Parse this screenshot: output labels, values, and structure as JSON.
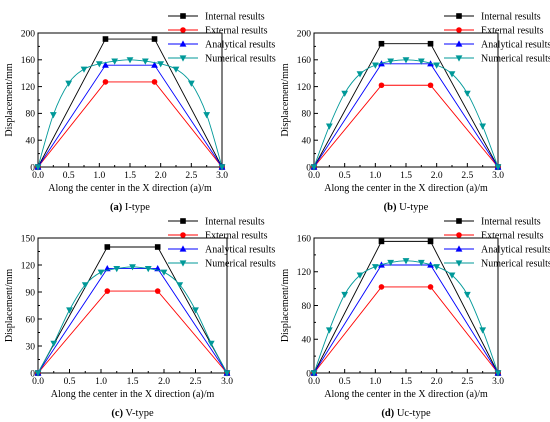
{
  "chart_data": [
    {
      "type": "line",
      "caption_letter": "(a)",
      "caption_text": " I-type",
      "xlabel": "Along the center in the X direction (a)/m",
      "ylabel": "Displacement/mm",
      "xlim": [
        0,
        3
      ],
      "ylim": [
        0,
        200
      ],
      "xticks": [
        "0.0",
        "0.5",
        "1.0",
        "1.5",
        "2.0",
        "2.5",
        "3.0"
      ],
      "yticks": [
        "0",
        "40",
        "80",
        "120",
        "160",
        "200"
      ],
      "legend_position": "top-right",
      "series": [
        {
          "name": "Internal results",
          "color": "#000000",
          "marker": "square",
          "show_markers": true,
          "points": [
            [
              0,
              0
            ],
            [
              1.1,
              191
            ],
            [
              1.9,
              191
            ],
            [
              3.0,
              0
            ]
          ]
        },
        {
          "name": "External results",
          "color": "#ff0000",
          "marker": "circle",
          "show_markers": true,
          "points": [
            [
              0,
              0
            ],
            [
              1.1,
              127
            ],
            [
              1.9,
              127
            ],
            [
              3.0,
              0
            ]
          ]
        },
        {
          "name": "Analytical results",
          "color": "#0000ff",
          "marker": "triangle-up",
          "show_markers": true,
          "points": [
            [
              0,
              0
            ],
            [
              1.1,
              152
            ],
            [
              1.9,
              152
            ],
            [
              3.0,
              0
            ]
          ]
        },
        {
          "name": "Numerical results",
          "color": "#009999",
          "marker": "triangle-down",
          "show_markers": true,
          "points": [
            [
              0,
              0
            ],
            [
              0.25,
              78
            ],
            [
              0.5,
              125
            ],
            [
              0.75,
              146
            ],
            [
              1.0,
              154
            ],
            [
              1.25,
              158
            ],
            [
              1.5,
              160
            ],
            [
              1.75,
              158
            ],
            [
              2.0,
              154
            ],
            [
              2.25,
              146
            ],
            [
              2.5,
              125
            ],
            [
              2.75,
              78
            ],
            [
              3.0,
              0
            ]
          ]
        }
      ]
    },
    {
      "type": "line",
      "caption_letter": "(b)",
      "caption_text": " U-type",
      "xlabel": "Along the center in the X direction (a)/m",
      "ylabel": "Displacement/mm",
      "xlim": [
        0,
        3
      ],
      "ylim": [
        0,
        200
      ],
      "xticks": [
        "0.0",
        "0.5",
        "1.0",
        "1.5",
        "2.0",
        "2.5",
        "3.0"
      ],
      "yticks": [
        "0",
        "40",
        "80",
        "120",
        "160",
        "200"
      ],
      "legend_position": "top-right",
      "series": [
        {
          "name": "Internal results",
          "color": "#000000",
          "marker": "square",
          "show_markers": true,
          "points": [
            [
              0,
              0
            ],
            [
              1.1,
              184
            ],
            [
              1.9,
              184
            ],
            [
              3.0,
              0
            ]
          ]
        },
        {
          "name": "External results",
          "color": "#ff0000",
          "marker": "circle",
          "show_markers": true,
          "points": [
            [
              0,
              0
            ],
            [
              1.1,
              122
            ],
            [
              1.9,
              122
            ],
            [
              3.0,
              0
            ]
          ]
        },
        {
          "name": "Analytical results",
          "color": "#0000ff",
          "marker": "triangle-up",
          "show_markers": true,
          "points": [
            [
              0,
              0
            ],
            [
              1.1,
              154
            ],
            [
              1.9,
              154
            ],
            [
              3.0,
              0
            ]
          ]
        },
        {
          "name": "Numerical results",
          "color": "#009999",
          "marker": "triangle-down",
          "show_markers": true,
          "points": [
            [
              0,
              0
            ],
            [
              0.25,
              61
            ],
            [
              0.5,
              110
            ],
            [
              0.75,
              139
            ],
            [
              1.0,
              152
            ],
            [
              1.25,
              158
            ],
            [
              1.5,
              160
            ],
            [
              1.75,
              158
            ],
            [
              2.0,
              152
            ],
            [
              2.25,
              139
            ],
            [
              2.5,
              110
            ],
            [
              2.75,
              61
            ],
            [
              3.0,
              0
            ]
          ]
        }
      ]
    },
    {
      "type": "line",
      "caption_letter": "(c)",
      "caption_text": " V-type",
      "xlabel": "Along the center in the X direction (a)/m",
      "ylabel": "Displacement/mm",
      "xlim": [
        0,
        3
      ],
      "ylim": [
        0,
        150
      ],
      "xticks": [
        "0.0",
        "0.5",
        "1.0",
        "1.5",
        "2.0",
        "2.5",
        "3.0"
      ],
      "yticks": [
        "0",
        "30",
        "60",
        "90",
        "120",
        "150"
      ],
      "legend_position": "top-right",
      "series": [
        {
          "name": "Internal results",
          "color": "#000000",
          "marker": "square",
          "show_markers": true,
          "points": [
            [
              0,
              0
            ],
            [
              1.1,
              140
            ],
            [
              1.9,
              140
            ],
            [
              3.0,
              0
            ]
          ]
        },
        {
          "name": "External results",
          "color": "#ff0000",
          "marker": "circle",
          "show_markers": true,
          "points": [
            [
              0,
              0
            ],
            [
              1.1,
              91
            ],
            [
              1.9,
              91
            ],
            [
              3.0,
              0
            ]
          ]
        },
        {
          "name": "Analytical results",
          "color": "#0000ff",
          "marker": "triangle-up",
          "show_markers": true,
          "points": [
            [
              0,
              0
            ],
            [
              1.1,
              116
            ],
            [
              1.9,
              116
            ],
            [
              3.0,
              0
            ]
          ]
        },
        {
          "name": "Numerical results",
          "color": "#009999",
          "marker": "triangle-down",
          "show_markers": true,
          "points": [
            [
              0,
              0
            ],
            [
              0.25,
              33
            ],
            [
              0.5,
              70
            ],
            [
              0.75,
              98
            ],
            [
              1.0,
              112
            ],
            [
              1.25,
              116
            ],
            [
              1.5,
              118
            ],
            [
              1.75,
              116
            ],
            [
              2.0,
              112
            ],
            [
              2.25,
              98
            ],
            [
              2.5,
              70
            ],
            [
              2.75,
              33
            ],
            [
              3.0,
              0
            ]
          ]
        }
      ]
    },
    {
      "type": "line",
      "caption_letter": "(d)",
      "caption_text": " Uc-type",
      "xlabel": "Along the center in the X direction (a)/m",
      "ylabel": "Displacement/mm",
      "xlim": [
        0,
        3
      ],
      "ylim": [
        0,
        160
      ],
      "xticks": [
        "0.0",
        "0.5",
        "1.0",
        "1.5",
        "2.0",
        "2.5",
        "3.0"
      ],
      "yticks": [
        "0",
        "40",
        "80",
        "120",
        "160"
      ],
      "legend_position": "top-right",
      "series": [
        {
          "name": "Internal results",
          "color": "#000000",
          "marker": "square",
          "show_markers": true,
          "points": [
            [
              0,
              0
            ],
            [
              1.1,
              156
            ],
            [
              1.9,
              156
            ],
            [
              3.0,
              0
            ]
          ]
        },
        {
          "name": "External results",
          "color": "#ff0000",
          "marker": "circle",
          "show_markers": true,
          "points": [
            [
              0,
              0
            ],
            [
              1.1,
              102
            ],
            [
              1.9,
              102
            ],
            [
              3.0,
              0
            ]
          ]
        },
        {
          "name": "Analytical results",
          "color": "#0000ff",
          "marker": "triangle-up",
          "show_markers": true,
          "points": [
            [
              0,
              0
            ],
            [
              1.1,
              128
            ],
            [
              1.9,
              128
            ],
            [
              3.0,
              0
            ]
          ]
        },
        {
          "name": "Numerical results",
          "color": "#009999",
          "marker": "triangle-down",
          "show_markers": true,
          "points": [
            [
              0,
              0
            ],
            [
              0.25,
              51
            ],
            [
              0.5,
              93
            ],
            [
              0.75,
              116
            ],
            [
              1.0,
              126
            ],
            [
              1.25,
              131
            ],
            [
              1.5,
              133
            ],
            [
              1.75,
              131
            ],
            [
              2.0,
              126
            ],
            [
              2.25,
              116
            ],
            [
              2.5,
              93
            ],
            [
              2.75,
              51
            ],
            [
              3.0,
              0
            ]
          ]
        }
      ]
    }
  ]
}
